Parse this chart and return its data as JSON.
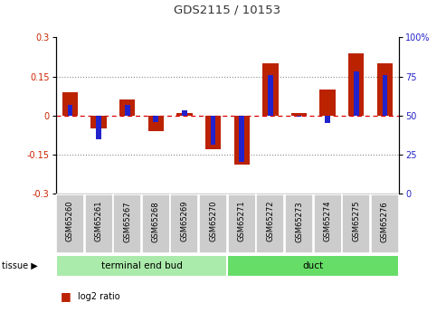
{
  "title": "GDS2115 / 10153",
  "samples": [
    "GSM65260",
    "GSM65261",
    "GSM65267",
    "GSM65268",
    "GSM65269",
    "GSM65270",
    "GSM65271",
    "GSM65272",
    "GSM65273",
    "GSM65274",
    "GSM65275",
    "GSM65276"
  ],
  "log2_ratio": [
    0.09,
    -0.05,
    0.06,
    -0.06,
    0.01,
    -0.13,
    -0.19,
    0.2,
    0.01,
    0.1,
    0.24,
    0.2
  ],
  "percentile_rank": [
    57,
    35,
    57,
    46,
    53,
    31,
    20,
    76,
    49,
    45,
    78,
    76
  ],
  "tissue_groups": [
    {
      "label": "terminal end bud",
      "start": 0,
      "end": 6,
      "color": "#aaeaaa"
    },
    {
      "label": "duct",
      "start": 6,
      "end": 12,
      "color": "#66dd66"
    }
  ],
  "ylim": [
    -0.3,
    0.3
  ],
  "y2lim": [
    0,
    100
  ],
  "yticks": [
    -0.3,
    -0.15,
    0.0,
    0.15,
    0.3
  ],
  "y2ticks": [
    0,
    25,
    50,
    75,
    100
  ],
  "bar_color_red": "#bb2200",
  "bar_color_blue": "#2222cc",
  "zero_line_color": "#dd0000",
  "dotted_line_color": "#888888",
  "background_label": "#cccccc",
  "bar_width": 0.55,
  "blue_bar_width": 0.18,
  "title_color": "#333333",
  "left_axis_color": "#cc2200",
  "right_axis_color": "#2222cc"
}
